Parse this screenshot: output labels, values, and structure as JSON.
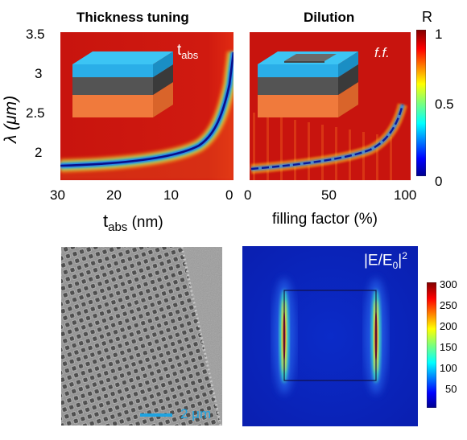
{
  "panel_a": {
    "title": "Thickness tuning",
    "ylabel": "λ (μm)",
    "xlabel_main": "t",
    "xlabel_sub": "abs",
    "xlabel_unit": " (nm)",
    "inset_label_main": "t",
    "inset_label_sub": "abs",
    "yticks": [
      "3.5",
      "3",
      "2.5",
      "2"
    ],
    "xticks": [
      "30",
      "20",
      "10",
      "0"
    ]
  },
  "panel_b": {
    "title": "Dilution",
    "xlabel": "filling factor (%)",
    "inset_label": "f.f.",
    "xticks": [
      "0",
      "50",
      "100"
    ]
  },
  "colorbar_r": {
    "label": "R",
    "ticks": [
      "1",
      "0.5",
      "0"
    ]
  },
  "panel_c": {
    "scale_label": "2 μm",
    "scale_color": "#1fa3e0"
  },
  "panel_d": {
    "label_main": "|E/E",
    "label_sub": "0",
    "label_close": "|",
    "label_sup": "2",
    "colorbar_ticks": [
      "300",
      "250",
      "200",
      "150",
      "100",
      "50"
    ]
  },
  "colors": {
    "map_red": "#c8140e",
    "map_blue": "#0a1fb0",
    "inset_top": "#2db8ee",
    "inset_mid": "#545454",
    "inset_bottom": "#f07a3c"
  }
}
